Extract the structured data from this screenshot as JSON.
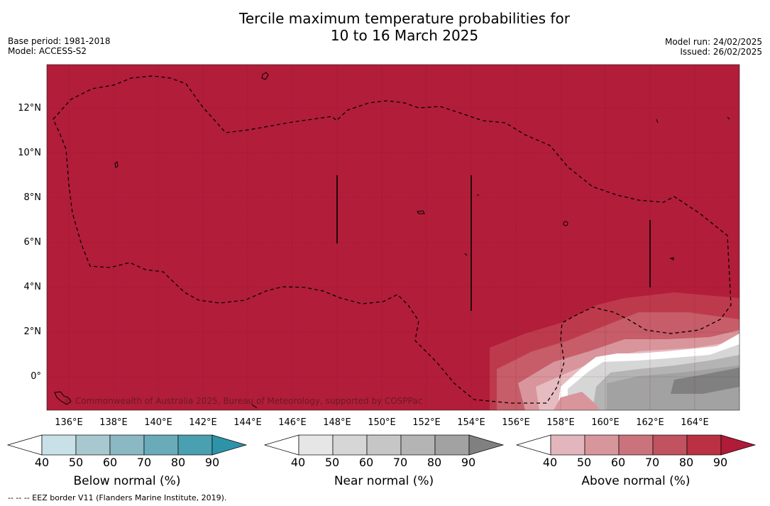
{
  "title_line1": "Tercile maximum temperature probabilities for",
  "title_line2": "10 to 16 March 2025",
  "base_period": "Base period: 1981-2018",
  "model": "Model: ACCESS-S2",
  "model_run": "Model run: 24/02/2025",
  "issued": "Issued: 26/02/2025",
  "copyright": "© Commonwealth of Australia 2025, Bureau of Meteorology, supported by COSPPac",
  "footnote": "--  --  -- EEZ border V11 (Flanders Marine Institute, 2019).",
  "axes": {
    "y_labels": [
      "12°N",
      "10°N",
      "8°N",
      "6°N",
      "4°N",
      "2°N",
      "0°"
    ],
    "x_labels": [
      "136°E",
      "138°E",
      "140°E",
      "142°E",
      "144°E",
      "146°E",
      "148°E",
      "150°E",
      "152°E",
      "154°E",
      "156°E",
      "158°E",
      "160°E",
      "162°E",
      "164°E"
    ]
  },
  "colorbars": [
    {
      "name": "below",
      "title": "Below normal (%)",
      "ticks": [
        "40",
        "50",
        "60",
        "70",
        "80",
        "90"
      ],
      "colors": [
        "#ffffff",
        "#c8e0e7",
        "#a8c8cf",
        "#8ab8c3",
        "#6aabba",
        "#4a9fb0",
        "#2e93a8"
      ]
    },
    {
      "name": "near",
      "title": "Near normal (%)",
      "ticks": [
        "40",
        "50",
        "60",
        "70",
        "80",
        "90"
      ],
      "colors": [
        "#ffffff",
        "#e6e6e6",
        "#d6d6d6",
        "#c6c6c6",
        "#b4b4b4",
        "#a2a2a2",
        "#808080"
      ]
    },
    {
      "name": "above",
      "title": "Above normal (%)",
      "ticks": [
        "40",
        "50",
        "60",
        "70",
        "80",
        "90"
      ],
      "colors": [
        "#ffffff",
        "#e2b6bc",
        "#d7959c",
        "#cb737d",
        "#c1525f",
        "#b93143",
        "#b01b38"
      ]
    }
  ],
  "map_colors": {
    "dominant": "#b21d3a",
    "eez_line": "#000000"
  }
}
